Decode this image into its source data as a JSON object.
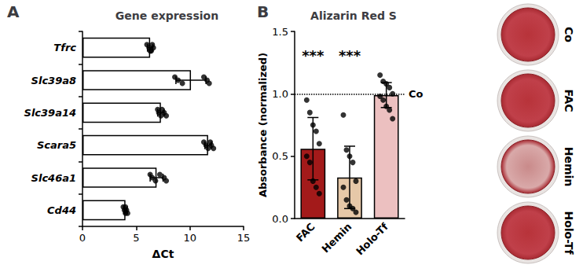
{
  "chart_data": [
    {
      "type": "bar",
      "panel": "A",
      "title": "Gene expression",
      "orientation": "horizontal",
      "categories": [
        "Tfrc",
        "Slc39a8",
        "Slc39a14",
        "Scara5",
        "Slc46a1",
        "Cd44"
      ],
      "values": [
        6.3,
        10.1,
        7.3,
        11.7,
        6.9,
        4.0
      ],
      "errors": [
        0.25,
        1.4,
        0.3,
        0.3,
        0.6,
        0.15
      ],
      "points": [
        [
          6.0,
          6.2,
          6.4,
          6.5,
          6.6,
          6.3
        ],
        [
          8.6,
          8.9,
          9.3,
          11.3,
          11.6,
          11.8
        ],
        [
          7.0,
          7.1,
          7.3,
          7.4,
          7.6,
          7.8
        ],
        [
          11.3,
          11.5,
          11.7,
          11.9,
          12.0,
          12.2
        ],
        [
          6.3,
          6.5,
          6.8,
          7.2,
          7.6,
          7.8
        ],
        [
          3.8,
          3.9,
          4.0,
          4.0,
          4.1,
          4.2
        ]
      ],
      "color": "#ffffff",
      "x_label": "ΔCt",
      "xlim": [
        0,
        15
      ],
      "xticks": [
        0,
        5,
        10,
        15
      ],
      "grid": false
    },
    {
      "type": "bar",
      "panel": "B",
      "title": "Alizarin Red S",
      "categories": [
        "FAC",
        "Hemin",
        "Holo-Tf"
      ],
      "values": [
        0.56,
        0.33,
        0.99
      ],
      "errors": [
        0.25,
        0.25,
        0.1
      ],
      "points": [
        [
          0.95,
          0.85,
          0.75,
          0.7,
          0.6,
          0.5,
          0.45,
          0.3,
          0.25,
          0.2
        ],
        [
          0.83,
          0.55,
          0.5,
          0.45,
          0.3,
          0.25,
          0.15,
          0.1,
          0.08,
          0.05
        ],
        [
          1.15,
          1.1,
          1.08,
          1.05,
          1.0,
          0.98,
          0.95,
          0.9,
          0.87,
          0.8
        ]
      ],
      "colors": [
        "#a31a1a",
        "#e6c8a8",
        "#ecc0c0"
      ],
      "y_label": "Absorbance (normalized)",
      "ylim": [
        0,
        1.5
      ],
      "yticks": [
        {
          "value": 0,
          "label": "0.0"
        },
        {
          "value": 0.5,
          "label": "0.5"
        },
        {
          "value": 1.0,
          "label": "1.0"
        },
        {
          "value": 1.5,
          "label": "1.5"
        }
      ],
      "reference_line": {
        "value": 1.0,
        "label": "Co"
      },
      "annotations": [
        {
          "category": "FAC",
          "text": "***"
        },
        {
          "category": "Hemin",
          "text": "***"
        }
      ],
      "well_images": [
        "Co",
        "FAC",
        "Hemin",
        "Holo-Tf"
      ],
      "grid": false
    }
  ]
}
